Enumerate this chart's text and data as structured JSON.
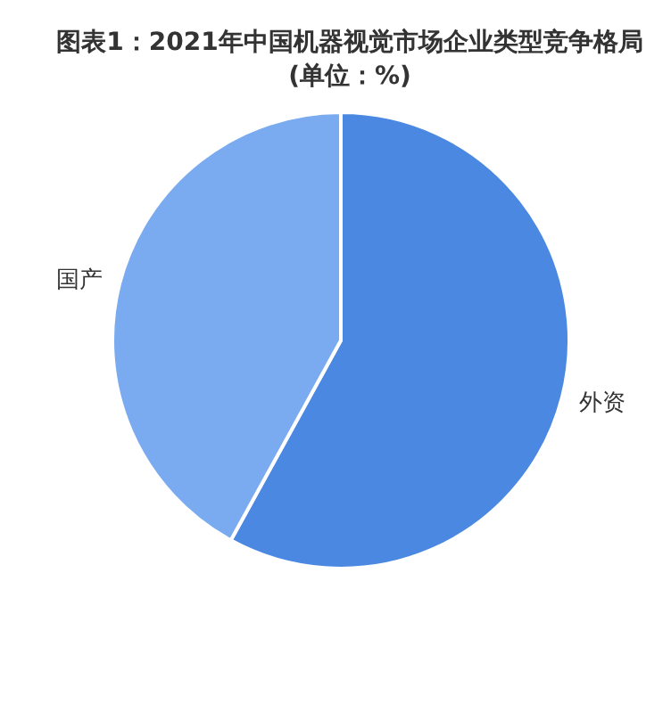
{
  "chart_data": {
    "type": "pie",
    "title": "图表1：2021年中国机器视觉市场企业类型竞争格局(单位：%)",
    "categories": [
      "外资",
      "国产"
    ],
    "values": [
      58,
      42
    ],
    "colors": [
      "#4a88e2",
      "#7aaaef"
    ]
  }
}
